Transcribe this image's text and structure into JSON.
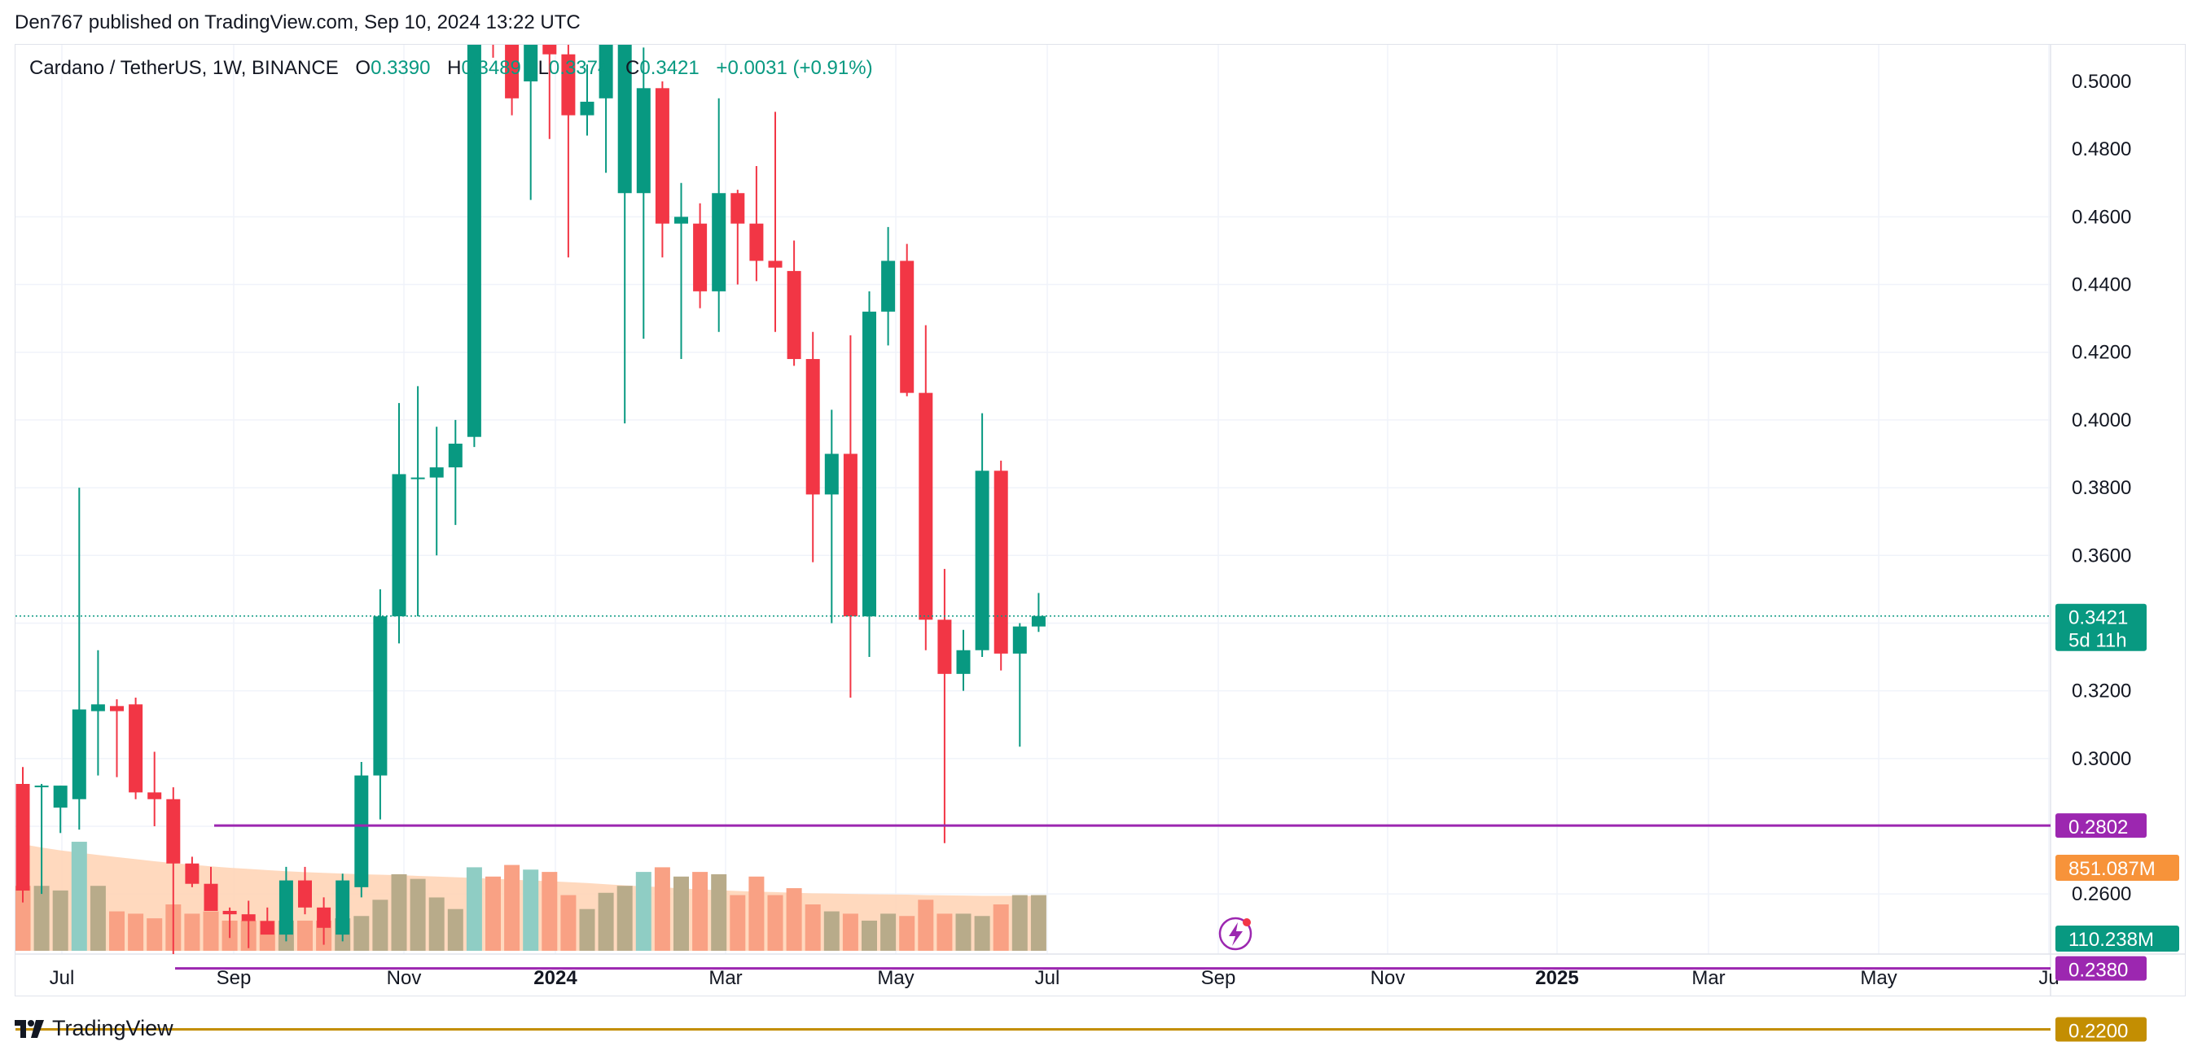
{
  "header": {
    "published": "Den767 published on TradingView.com, Sep 10, 2024 13:22 UTC"
  },
  "legend": {
    "symbol": "Cardano / TetherUS, 1W, BINANCE",
    "open_label": "O",
    "open_value": "0.3390",
    "high_label": "H",
    "high_value": "0.3489",
    "low_label": "L",
    "low_value": "0.3374",
    "close_label": "C",
    "close_value": "0.3421",
    "change": "+0.0031 (+0.91%)"
  },
  "footer": {
    "brand": "TradingView"
  },
  "colors": {
    "up": "#089981",
    "down": "#f23645",
    "vol_up": "#b8ab8a",
    "vol_down": "#f9a184",
    "vol_up_hi": "#8fcdc4",
    "vol_down_hi": "#f7a3a3",
    "vol_ma_fill": "#ffd2b3",
    "level_purple": "#9c27b0",
    "level_gold": "#c38e02",
    "last_price": "#089981",
    "vol_badge": "#f7933a"
  },
  "chart_data": {
    "type": "candlestick",
    "timeframe": "1W",
    "price_axis": {
      "ticks": [
        "0.5000",
        "0.4800",
        "0.4600",
        "0.4400",
        "0.4200",
        "0.4000",
        "0.3800",
        "0.3600",
        "0.3200",
        "0.3000",
        "0.2600"
      ],
      "range": [
        0.2227,
        0.5132
      ]
    },
    "time_axis": {
      "labels": [
        "Jul",
        "Sep",
        "Nov",
        "2024",
        "Mar",
        "May",
        "Jul",
        "Sep",
        "Nov",
        "2025",
        "Mar",
        "May",
        "Ju"
      ],
      "bold": [
        "2024",
        "2025"
      ]
    },
    "candles": [
      {
        "o": 0.2925,
        "h": 0.2975,
        "l": 0.2575,
        "c": 0.261
      },
      {
        "o": 0.292,
        "h": 0.2925,
        "l": 0.26,
        "c": 0.292
      },
      {
        "o": 0.2855,
        "h": 0.292,
        "l": 0.278,
        "c": 0.292
      },
      {
        "o": 0.288,
        "h": 0.38,
        "l": 0.279,
        "c": 0.3145
      },
      {
        "o": 0.314,
        "h": 0.332,
        "l": 0.295,
        "c": 0.316
      },
      {
        "o": 0.3155,
        "h": 0.3175,
        "l": 0.2945,
        "c": 0.314
      },
      {
        "o": 0.316,
        "h": 0.318,
        "l": 0.288,
        "c": 0.29
      },
      {
        "o": 0.29,
        "h": 0.302,
        "l": 0.28,
        "c": 0.288
      },
      {
        "o": 0.288,
        "h": 0.2915,
        "l": 0.238,
        "c": 0.269
      },
      {
        "o": 0.269,
        "h": 0.271,
        "l": 0.262,
        "c": 0.263
      },
      {
        "o": 0.263,
        "h": 0.268,
        "l": 0.258,
        "c": 0.255
      },
      {
        "o": 0.255,
        "h": 0.256,
        "l": 0.247,
        "c": 0.254
      },
      {
        "o": 0.254,
        "h": 0.258,
        "l": 0.244,
        "c": 0.252
      },
      {
        "o": 0.252,
        "h": 0.256,
        "l": 0.249,
        "c": 0.248
      },
      {
        "o": 0.248,
        "h": 0.268,
        "l": 0.246,
        "c": 0.264
      },
      {
        "o": 0.264,
        "h": 0.268,
        "l": 0.254,
        "c": 0.256
      },
      {
        "o": 0.256,
        "h": 0.259,
        "l": 0.245,
        "c": 0.25
      },
      {
        "o": 0.248,
        "h": 0.266,
        "l": 0.246,
        "c": 0.264
      },
      {
        "o": 0.262,
        "h": 0.299,
        "l": 0.259,
        "c": 0.295
      },
      {
        "o": 0.295,
        "h": 0.35,
        "l": 0.282,
        "c": 0.342
      },
      {
        "o": 0.342,
        "h": 0.405,
        "l": 0.334,
        "c": 0.384
      },
      {
        "o": 0.383,
        "h": 0.41,
        "l": 0.342,
        "c": 0.383
      },
      {
        "o": 0.383,
        "h": 0.398,
        "l": 0.36,
        "c": 0.386
      },
      {
        "o": 0.386,
        "h": 0.4,
        "l": 0.369,
        "c": 0.393
      },
      {
        "o": 0.395,
        "h": 0.53,
        "l": 0.392,
        "c": 0.53
      },
      {
        "o": 0.53,
        "h": 0.535,
        "l": 0.507,
        "c": 0.518
      },
      {
        "o": 0.518,
        "h": 0.528,
        "l": 0.49,
        "c": 0.495
      },
      {
        "o": 0.5,
        "h": 0.54,
        "l": 0.465,
        "c": 0.512
      },
      {
        "o": 0.512,
        "h": 0.52,
        "l": 0.483,
        "c": 0.508
      },
      {
        "o": 0.508,
        "h": 0.515,
        "l": 0.448,
        "c": 0.49
      },
      {
        "o": 0.49,
        "h": 0.505,
        "l": 0.484,
        "c": 0.494
      },
      {
        "o": 0.495,
        "h": 0.53,
        "l": 0.473,
        "c": 0.52
      },
      {
        "o": 0.467,
        "h": 0.53,
        "l": 0.399,
        "c": 0.525
      },
      {
        "o": 0.467,
        "h": 0.51,
        "l": 0.424,
        "c": 0.498
      },
      {
        "o": 0.498,
        "h": 0.5,
        "l": 0.448,
        "c": 0.458
      },
      {
        "o": 0.458,
        "h": 0.47,
        "l": 0.418,
        "c": 0.46
      },
      {
        "o": 0.458,
        "h": 0.464,
        "l": 0.433,
        "c": 0.438
      },
      {
        "o": 0.438,
        "h": 0.495,
        "l": 0.426,
        "c": 0.467
      },
      {
        "o": 0.467,
        "h": 0.468,
        "l": 0.44,
        "c": 0.458
      },
      {
        "o": 0.458,
        "h": 0.475,
        "l": 0.441,
        "c": 0.447
      },
      {
        "o": 0.447,
        "h": 0.491,
        "l": 0.426,
        "c": 0.445
      },
      {
        "o": 0.444,
        "h": 0.453,
        "l": 0.416,
        "c": 0.418
      },
      {
        "o": 0.418,
        "h": 0.426,
        "l": 0.358,
        "c": 0.378
      },
      {
        "o": 0.378,
        "h": 0.403,
        "l": 0.34,
        "c": 0.39
      },
      {
        "o": 0.39,
        "h": 0.425,
        "l": 0.318,
        "c": 0.342
      },
      {
        "o": 0.342,
        "h": 0.438,
        "l": 0.33,
        "c": 0.432
      },
      {
        "o": 0.432,
        "h": 0.457,
        "l": 0.422,
        "c": 0.447
      },
      {
        "o": 0.447,
        "h": 0.452,
        "l": 0.407,
        "c": 0.408
      },
      {
        "o": 0.408,
        "h": 0.428,
        "l": 0.332,
        "c": 0.341
      },
      {
        "o": 0.341,
        "h": 0.356,
        "l": 0.275,
        "c": 0.325
      },
      {
        "o": 0.325,
        "h": 0.338,
        "l": 0.32,
        "c": 0.332
      },
      {
        "o": 0.332,
        "h": 0.402,
        "l": 0.33,
        "c": 0.385
      },
      {
        "o": 0.385,
        "h": 0.388,
        "l": 0.326,
        "c": 0.331
      },
      {
        "o": 0.331,
        "h": 0.34,
        "l": 0.3035,
        "c": 0.339
      },
      {
        "o": 0.339,
        "h": 0.3489,
        "l": 0.3374,
        "c": 0.3421
      }
    ],
    "volume": {
      "bars": [
        28,
        28,
        26,
        47,
        28,
        17,
        16,
        14,
        20,
        16,
        17,
        13,
        13,
        13,
        13,
        13,
        13,
        14,
        15,
        22,
        33,
        31,
        23,
        18,
        36,
        32,
        37,
        35,
        34,
        24,
        18,
        25,
        28,
        34,
        36,
        32,
        34,
        33,
        24,
        32,
        24,
        27,
        20,
        17,
        16,
        13,
        16,
        15,
        22,
        16,
        16,
        15,
        20,
        24,
        24
      ],
      "ma": [
        45.9,
        44.5,
        43.3,
        42.3,
        41.3,
        40.4,
        39.5,
        38.6,
        37.8,
        37.1,
        36.4,
        35.8,
        35.3,
        34.8,
        34.3,
        33.9,
        33.6,
        33.3,
        33.0,
        32.8,
        32.6,
        32.3,
        32.0,
        31.7,
        31.4,
        31.1,
        30.7,
        30.3,
        30.0,
        29.6,
        29.2,
        28.7,
        28.2,
        27.8,
        27.4,
        26.9,
        26.5,
        26.1,
        25.8,
        25.5,
        25.3,
        25.0,
        24.8,
        24.7,
        24.5,
        24.4,
        24.3,
        24.2,
        24.0,
        23.9,
        23.8,
        23.7,
        23.7,
        23.7,
        23.7
      ],
      "ma_value": "851.087",
      "ma_unit": "M",
      "value": "110.238",
      "unit": "M"
    },
    "levels": [
      {
        "price": 0.2802,
        "label": "0.2802",
        "color": "#9c27b0"
      },
      {
        "price": 0.238,
        "label": "0.2380",
        "color": "#9c27b0"
      },
      {
        "price": 0.22,
        "label": "0.2200",
        "color": "#c38e02"
      }
    ],
    "last_price": {
      "price": 0.3421,
      "label": "0.3421",
      "countdown": "5d 11h"
    }
  }
}
